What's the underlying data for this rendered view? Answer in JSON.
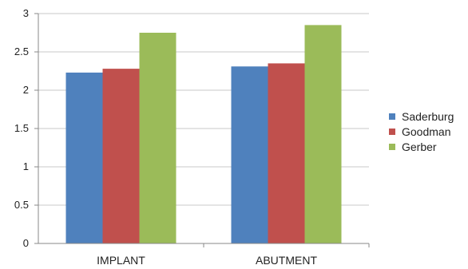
{
  "chart_data": {
    "type": "bar",
    "categories": [
      "IMPLANT",
      "ABUTMENT"
    ],
    "series": [
      {
        "name": "Saderburg",
        "color": "#4f81bd",
        "values": [
          2.23,
          2.31
        ]
      },
      {
        "name": "Goodman",
        "color": "#c0504d",
        "values": [
          2.28,
          2.35
        ]
      },
      {
        "name": "Gerber",
        "color": "#9bbb59",
        "values": [
          2.75,
          2.85
        ]
      }
    ],
    "ylim": [
      0,
      3
    ],
    "yticks": [
      0,
      0.5,
      1,
      1.5,
      2,
      2.5,
      3
    ],
    "ytick_labels": [
      "0",
      "0.5",
      "1",
      "1.5",
      "2",
      "2.5",
      "3"
    ],
    "grid": true,
    "legend_position": "right",
    "title": "",
    "xlabel": "",
    "ylabel": ""
  }
}
